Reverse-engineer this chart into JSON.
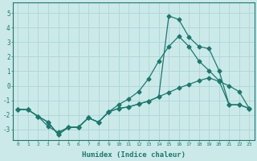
{
  "xlabel": "Humidex (Indice chaleur)",
  "xlim": [
    -0.5,
    23.5
  ],
  "ylim": [
    -3.7,
    5.7
  ],
  "yticks": [
    -3,
    -2,
    -1,
    0,
    1,
    2,
    3,
    4,
    5
  ],
  "xticks": [
    0,
    1,
    2,
    3,
    4,
    5,
    6,
    7,
    8,
    9,
    10,
    11,
    12,
    13,
    14,
    15,
    16,
    17,
    18,
    19,
    20,
    21,
    22,
    23
  ],
  "bg_color": "#cce9e9",
  "grid_color": "#b0d8d8",
  "line_color": "#1a7a6e",
  "line1_x": [
    0,
    1,
    2,
    3,
    4,
    5,
    6,
    7,
    8,
    9,
    10,
    11,
    12,
    13,
    14,
    15,
    16,
    17,
    18,
    19,
    20,
    21,
    22,
    23
  ],
  "line1_y": [
    -1.6,
    -1.65,
    -2.1,
    -2.8,
    -3.2,
    -2.85,
    -2.85,
    -2.2,
    -2.5,
    -1.8,
    -1.55,
    -1.45,
    -1.25,
    -1.05,
    -0.75,
    -0.45,
    -0.15,
    0.1,
    0.35,
    0.55,
    0.3,
    0.0,
    -0.4,
    -1.55
  ],
  "line2_x": [
    0,
    1,
    2,
    3,
    4,
    5,
    6,
    7,
    8,
    9,
    10,
    11,
    12,
    13,
    14,
    15,
    16,
    17,
    18,
    19,
    20,
    21,
    22,
    23
  ],
  "line2_y": [
    -1.6,
    -1.65,
    -2.1,
    -2.5,
    -3.35,
    -2.85,
    -2.85,
    -2.2,
    -2.5,
    -1.8,
    -1.55,
    -1.45,
    -1.25,
    -1.05,
    -0.75,
    4.8,
    4.55,
    3.35,
    2.7,
    2.55,
    1.05,
    -1.3,
    -1.3,
    -1.55
  ],
  "line3_x": [
    0,
    1,
    2,
    3,
    4,
    5,
    6,
    7,
    8,
    9,
    10,
    11,
    12,
    13,
    14,
    15,
    16,
    17,
    18,
    19,
    20,
    21,
    22,
    23
  ],
  "line3_y": [
    -1.6,
    -1.65,
    -2.1,
    -2.5,
    -3.35,
    -2.85,
    -2.85,
    -2.2,
    -2.5,
    -1.8,
    -1.3,
    -0.9,
    -0.4,
    0.5,
    1.7,
    2.7,
    3.4,
    2.7,
    1.7,
    1.05,
    0.35,
    -1.3,
    -1.3,
    -1.55
  ]
}
